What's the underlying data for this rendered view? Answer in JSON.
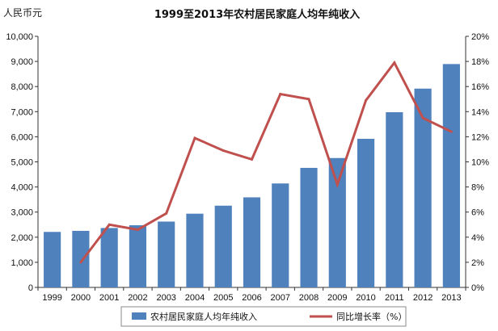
{
  "chart_data": {
    "type": "bar",
    "title": "1999至2013年农村居民家庭人均年纯收入",
    "ylabel": "人民币元",
    "categories": [
      "1999",
      "2000",
      "2001",
      "2002",
      "2003",
      "2004",
      "2005",
      "2006",
      "2007",
      "2008",
      "2009",
      "2010",
      "2011",
      "2012",
      "2013"
    ],
    "ylim": [
      0,
      10000
    ],
    "y2lim": [
      0,
      20
    ],
    "y_ticks": [
      "0",
      "1,000",
      "2,000",
      "3,000",
      "4,000",
      "5,000",
      "6,000",
      "7,000",
      "8,000",
      "9,000",
      "10,000"
    ],
    "y2_ticks": [
      "0%",
      "2%",
      "4%",
      "6%",
      "8%",
      "10%",
      "12%",
      "14%",
      "16%",
      "18%",
      "20%"
    ],
    "series": [
      {
        "name": "农村居民家庭人均年纯收入",
        "type": "bar",
        "axis": "left",
        "color": "#4f81bd",
        "values": [
          2210,
          2253,
          2366,
          2476,
          2622,
          2936,
          3255,
          3587,
          4140,
          4761,
          5153,
          5919,
          6977,
          7917,
          8896
        ]
      },
      {
        "name": "同比增长率（%）",
        "type": "line",
        "axis": "right",
        "color": "#c0504d",
        "values": [
          null,
          2.0,
          5.0,
          4.6,
          5.9,
          11.9,
          10.9,
          10.2,
          15.4,
          15.0,
          8.2,
          14.9,
          17.9,
          13.5,
          12.4
        ]
      }
    ],
    "grid": false,
    "legend_position": "bottom"
  }
}
